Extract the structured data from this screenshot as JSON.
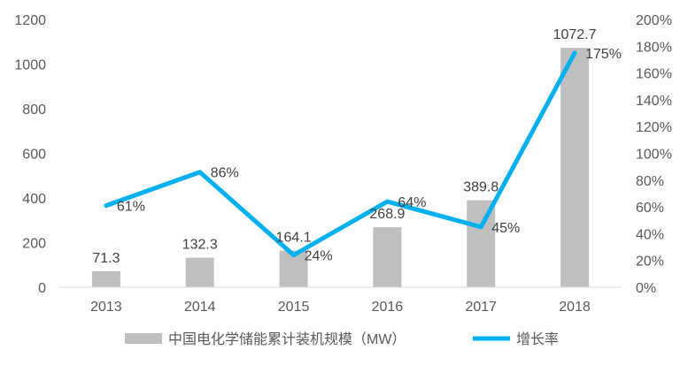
{
  "chart_data": {
    "type": "bar+line",
    "categories": [
      "2013",
      "2014",
      "2015",
      "2016",
      "2017",
      "2018"
    ],
    "series": [
      {
        "name": "中国电化学储能累计装机规模（MW）",
        "type": "bar",
        "axis": "left",
        "values": [
          71.3,
          132.3,
          164.1,
          268.9,
          389.8,
          1072.7
        ],
        "labels": [
          "71.3",
          "132.3",
          "164.1",
          "268.9",
          "389.8",
          "1072.7"
        ],
        "color": "#bfbfbf"
      },
      {
        "name": "增长率",
        "type": "line",
        "axis": "right",
        "values": [
          61,
          86,
          24,
          64,
          45,
          175
        ],
        "labels": [
          "61%",
          "86%",
          "24%",
          "64%",
          "45%",
          "175%"
        ],
        "color": "#00b0f0"
      }
    ],
    "y_left": {
      "range": [
        0,
        1200
      ],
      "ticks": [
        "0",
        "200",
        "400",
        "600",
        "800",
        "1000",
        "1200"
      ]
    },
    "y_right": {
      "range": [
        0,
        200
      ],
      "ticks": [
        "0%",
        "20%",
        "40%",
        "60%",
        "80%",
        "100%",
        "120%",
        "140%",
        "160%",
        "180%",
        "200%"
      ]
    },
    "grid": false,
    "legend": "bottom"
  }
}
